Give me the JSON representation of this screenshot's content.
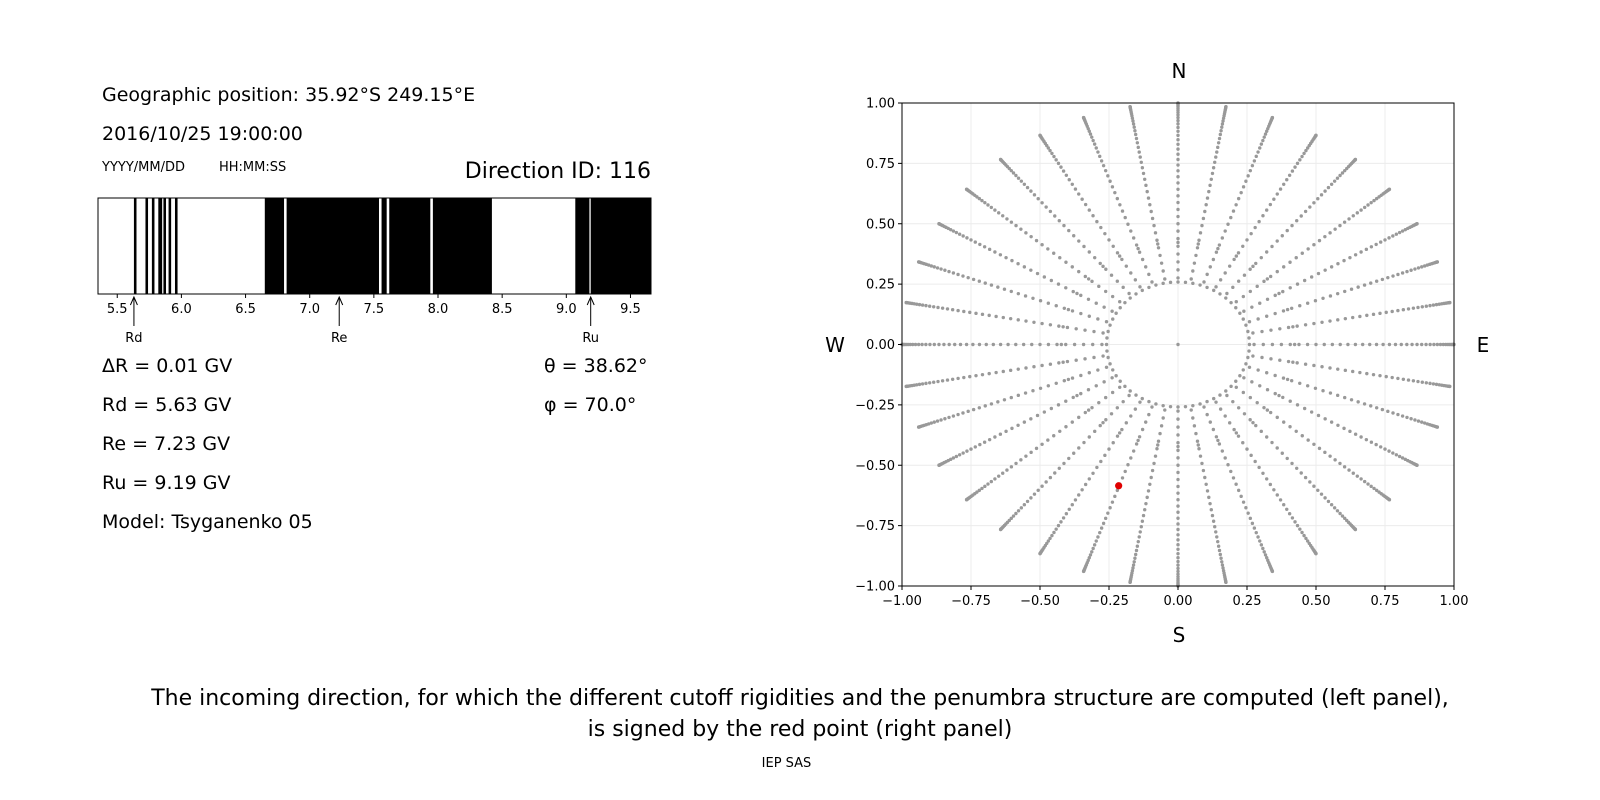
{
  "left_panel": {
    "geo_position": "Geographic position: 35.92°S 249.15°E",
    "datetime": "2016/10/25 19:00:00",
    "date_format": "YYYY/MM/DD",
    "time_format": "HH:MM:SS",
    "direction_id": "Direction ID: 116",
    "delta_r": "ΔR = 0.01 GV",
    "rd": "Rd = 5.63 GV",
    "re": "Re = 7.23 GV",
    "ru": "Ru = 9.19 GV",
    "model": "Model: Tsyganenko 05",
    "theta": "θ = 38.62°",
    "phi": "φ = 70.0°"
  },
  "caption": {
    "line1": "The incoming direction, for which the different cutoff rigidities and the penumbra structure are computed (left panel),",
    "line2": "is signed by the red point (right panel)",
    "credit": "IEP SAS"
  },
  "chart_data": [
    {
      "type": "penumbra",
      "xlim": [
        5.35,
        9.66
      ],
      "ticks": [
        "5.5",
        "6.0",
        "6.5",
        "7.0",
        "7.5",
        "8.0",
        "8.5",
        "9.0",
        "9.5"
      ],
      "tick_values": [
        5.5,
        6.0,
        6.5,
        7.0,
        7.5,
        8.0,
        8.5,
        9.0,
        9.5
      ],
      "markers": [
        {
          "label": "Rd",
          "value": 5.63
        },
        {
          "label": "Re",
          "value": 7.23
        },
        {
          "label": "Ru",
          "value": 9.19
        }
      ],
      "allowed_color": "#ffffff",
      "forbidden_color": "#000000",
      "forbidden_bands": [
        [
          5.63,
          5.65
        ],
        [
          5.72,
          5.74
        ],
        [
          5.77,
          5.79
        ],
        [
          5.82,
          5.85
        ],
        [
          5.86,
          5.88
        ],
        [
          5.9,
          5.92
        ],
        [
          5.95,
          5.97
        ],
        [
          6.65,
          6.8
        ],
        [
          6.82,
          7.54
        ],
        [
          7.56,
          7.6
        ],
        [
          7.62,
          7.94
        ],
        [
          7.96,
          8.42
        ],
        [
          9.07,
          9.18
        ],
        [
          9.19,
          9.66
        ]
      ]
    },
    {
      "type": "scatter",
      "xlim": [
        -1.0,
        1.0
      ],
      "ylim": [
        -1.0,
        1.0
      ],
      "xticks": [
        "−1.00",
        "−0.75",
        "−0.50",
        "−0.25",
        "0.00",
        "0.25",
        "0.50",
        "0.75",
        "1.00"
      ],
      "yticks": [
        "1.00",
        "0.75",
        "0.50",
        "0.25",
        "0.00",
        "−0.25",
        "−0.50",
        "−0.75",
        "−1.00"
      ],
      "grid": true,
      "compass": {
        "north": "N",
        "south": "S",
        "west": "W",
        "east": "E"
      },
      "grid_point_color": "#999999",
      "selected_color": "#e00000",
      "grid_points": {
        "theta_deg_start": 0,
        "theta_deg_end": 90,
        "theta_deg_step": 2,
        "rings_theta_deg": [
          15,
          25
        ],
        "spoke_azimuths_deg": [
          0,
          10,
          20,
          30,
          40,
          50,
          60,
          70,
          80,
          90,
          100,
          110,
          120,
          130,
          140,
          150,
          160,
          170,
          180,
          190,
          200,
          210,
          220,
          230,
          240,
          250,
          260,
          270,
          280,
          290,
          300,
          310,
          320,
          330,
          340,
          350
        ],
        "ring_azimuth_step_deg": 10
      },
      "selected_point": {
        "x": -0.215,
        "y": -0.585,
        "theta": 38.62,
        "phi": 70.0
      }
    }
  ]
}
